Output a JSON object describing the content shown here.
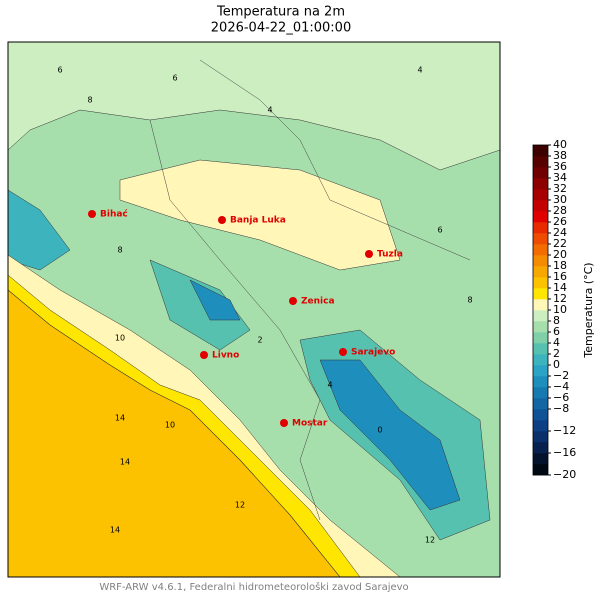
{
  "header": {
    "title": "Temperatura na 2m",
    "subtitle": "2026-04-22_01:00:00"
  },
  "cities": [
    "Bihać",
    "Banja Luka",
    "Tuzla",
    "Zenica",
    "Sarajevo",
    "Livno",
    "Mostar"
  ],
  "contour_labels": [
    6,
    8,
    6,
    4,
    8,
    10,
    14,
    14,
    14,
    10,
    12,
    2,
    4,
    0,
    6,
    8,
    12,
    4
  ],
  "colorbar": {
    "label": "Temperatura (°C)",
    "ticks": [
      {
        "value": -20,
        "label": "−20"
      },
      {
        "value": -16,
        "label": "−16"
      },
      {
        "value": -12,
        "label": "−12"
      },
      {
        "value": -8,
        "label": "−8"
      },
      {
        "value": -6,
        "label": "−6"
      },
      {
        "value": -4,
        "label": "−4"
      },
      {
        "value": -2,
        "label": "−2"
      },
      0,
      2,
      4,
      6,
      8,
      10,
      12,
      14,
      16,
      18,
      20,
      22,
      24,
      26,
      28,
      30,
      32,
      34,
      36,
      38,
      40
    ],
    "lim": [
      -20,
      40
    ],
    "colors": [
      "#000814",
      "#04122e",
      "#08204d",
      "#0b2f6b",
      "#0d3f85",
      "#0f5296",
      "#1266a3",
      "#1679b0",
      "#1e8ebc",
      "#2ba3c4",
      "#3db3bd",
      "#57c1b0",
      "#7fd0a8",
      "#a6dfac",
      "#cdeec0",
      "#fff6b8",
      "#ffe600",
      "#fcc200",
      "#f7a800",
      "#f58c00",
      "#f26c00",
      "#ee4c00",
      "#e82a00",
      "#e00000",
      "#c40000",
      "#a80000",
      "#8c0000",
      "#700000",
      "#560000",
      "#3c0000"
    ]
  },
  "footer": "WRF-ARW v4.6.1, Federalni hidrometeorološki zavod Sarajevo"
}
